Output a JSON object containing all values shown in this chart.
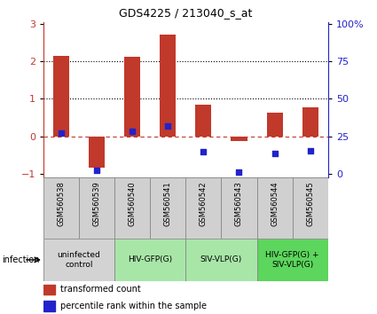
{
  "title": "GDS4225 / 213040_s_at",
  "samples": [
    "GSM560538",
    "GSM560539",
    "GSM560540",
    "GSM560541",
    "GSM560542",
    "GSM560543",
    "GSM560544",
    "GSM560545"
  ],
  "red_bars": [
    2.15,
    -0.85,
    2.12,
    2.72,
    0.85,
    -0.12,
    0.62,
    0.78
  ],
  "blue_dots": [
    0.08,
    -0.92,
    0.12,
    0.28,
    -0.42,
    -0.95,
    -0.45,
    -0.4
  ],
  "ylim": [
    -1.1,
    3.05
  ],
  "yticks_left": [
    -1,
    0,
    1,
    2,
    3
  ],
  "right_axis_values": [
    0,
    25,
    50,
    75,
    100
  ],
  "dotted_lines": [
    1,
    2
  ],
  "dashed_zero": 0,
  "groups": [
    {
      "label": "uninfected\ncontrol",
      "start": 0,
      "end": 2,
      "color": "#d3d3d3"
    },
    {
      "label": "HIV-GFP(G)",
      "start": 2,
      "end": 4,
      "color": "#a8e6a8"
    },
    {
      "label": "SIV-VLP(G)",
      "start": 4,
      "end": 6,
      "color": "#a8e6a8"
    },
    {
      "label": "HIV-GFP(G) +\nSIV-VLP(G)",
      "start": 6,
      "end": 8,
      "color": "#5cd65c"
    }
  ],
  "bar_color": "#c0392b",
  "blue_color": "#2222cc",
  "bg_color": "#ffffff",
  "legend_red_label": "transformed count",
  "legend_blue_label": "percentile rank within the sample",
  "infection_label": "infection"
}
